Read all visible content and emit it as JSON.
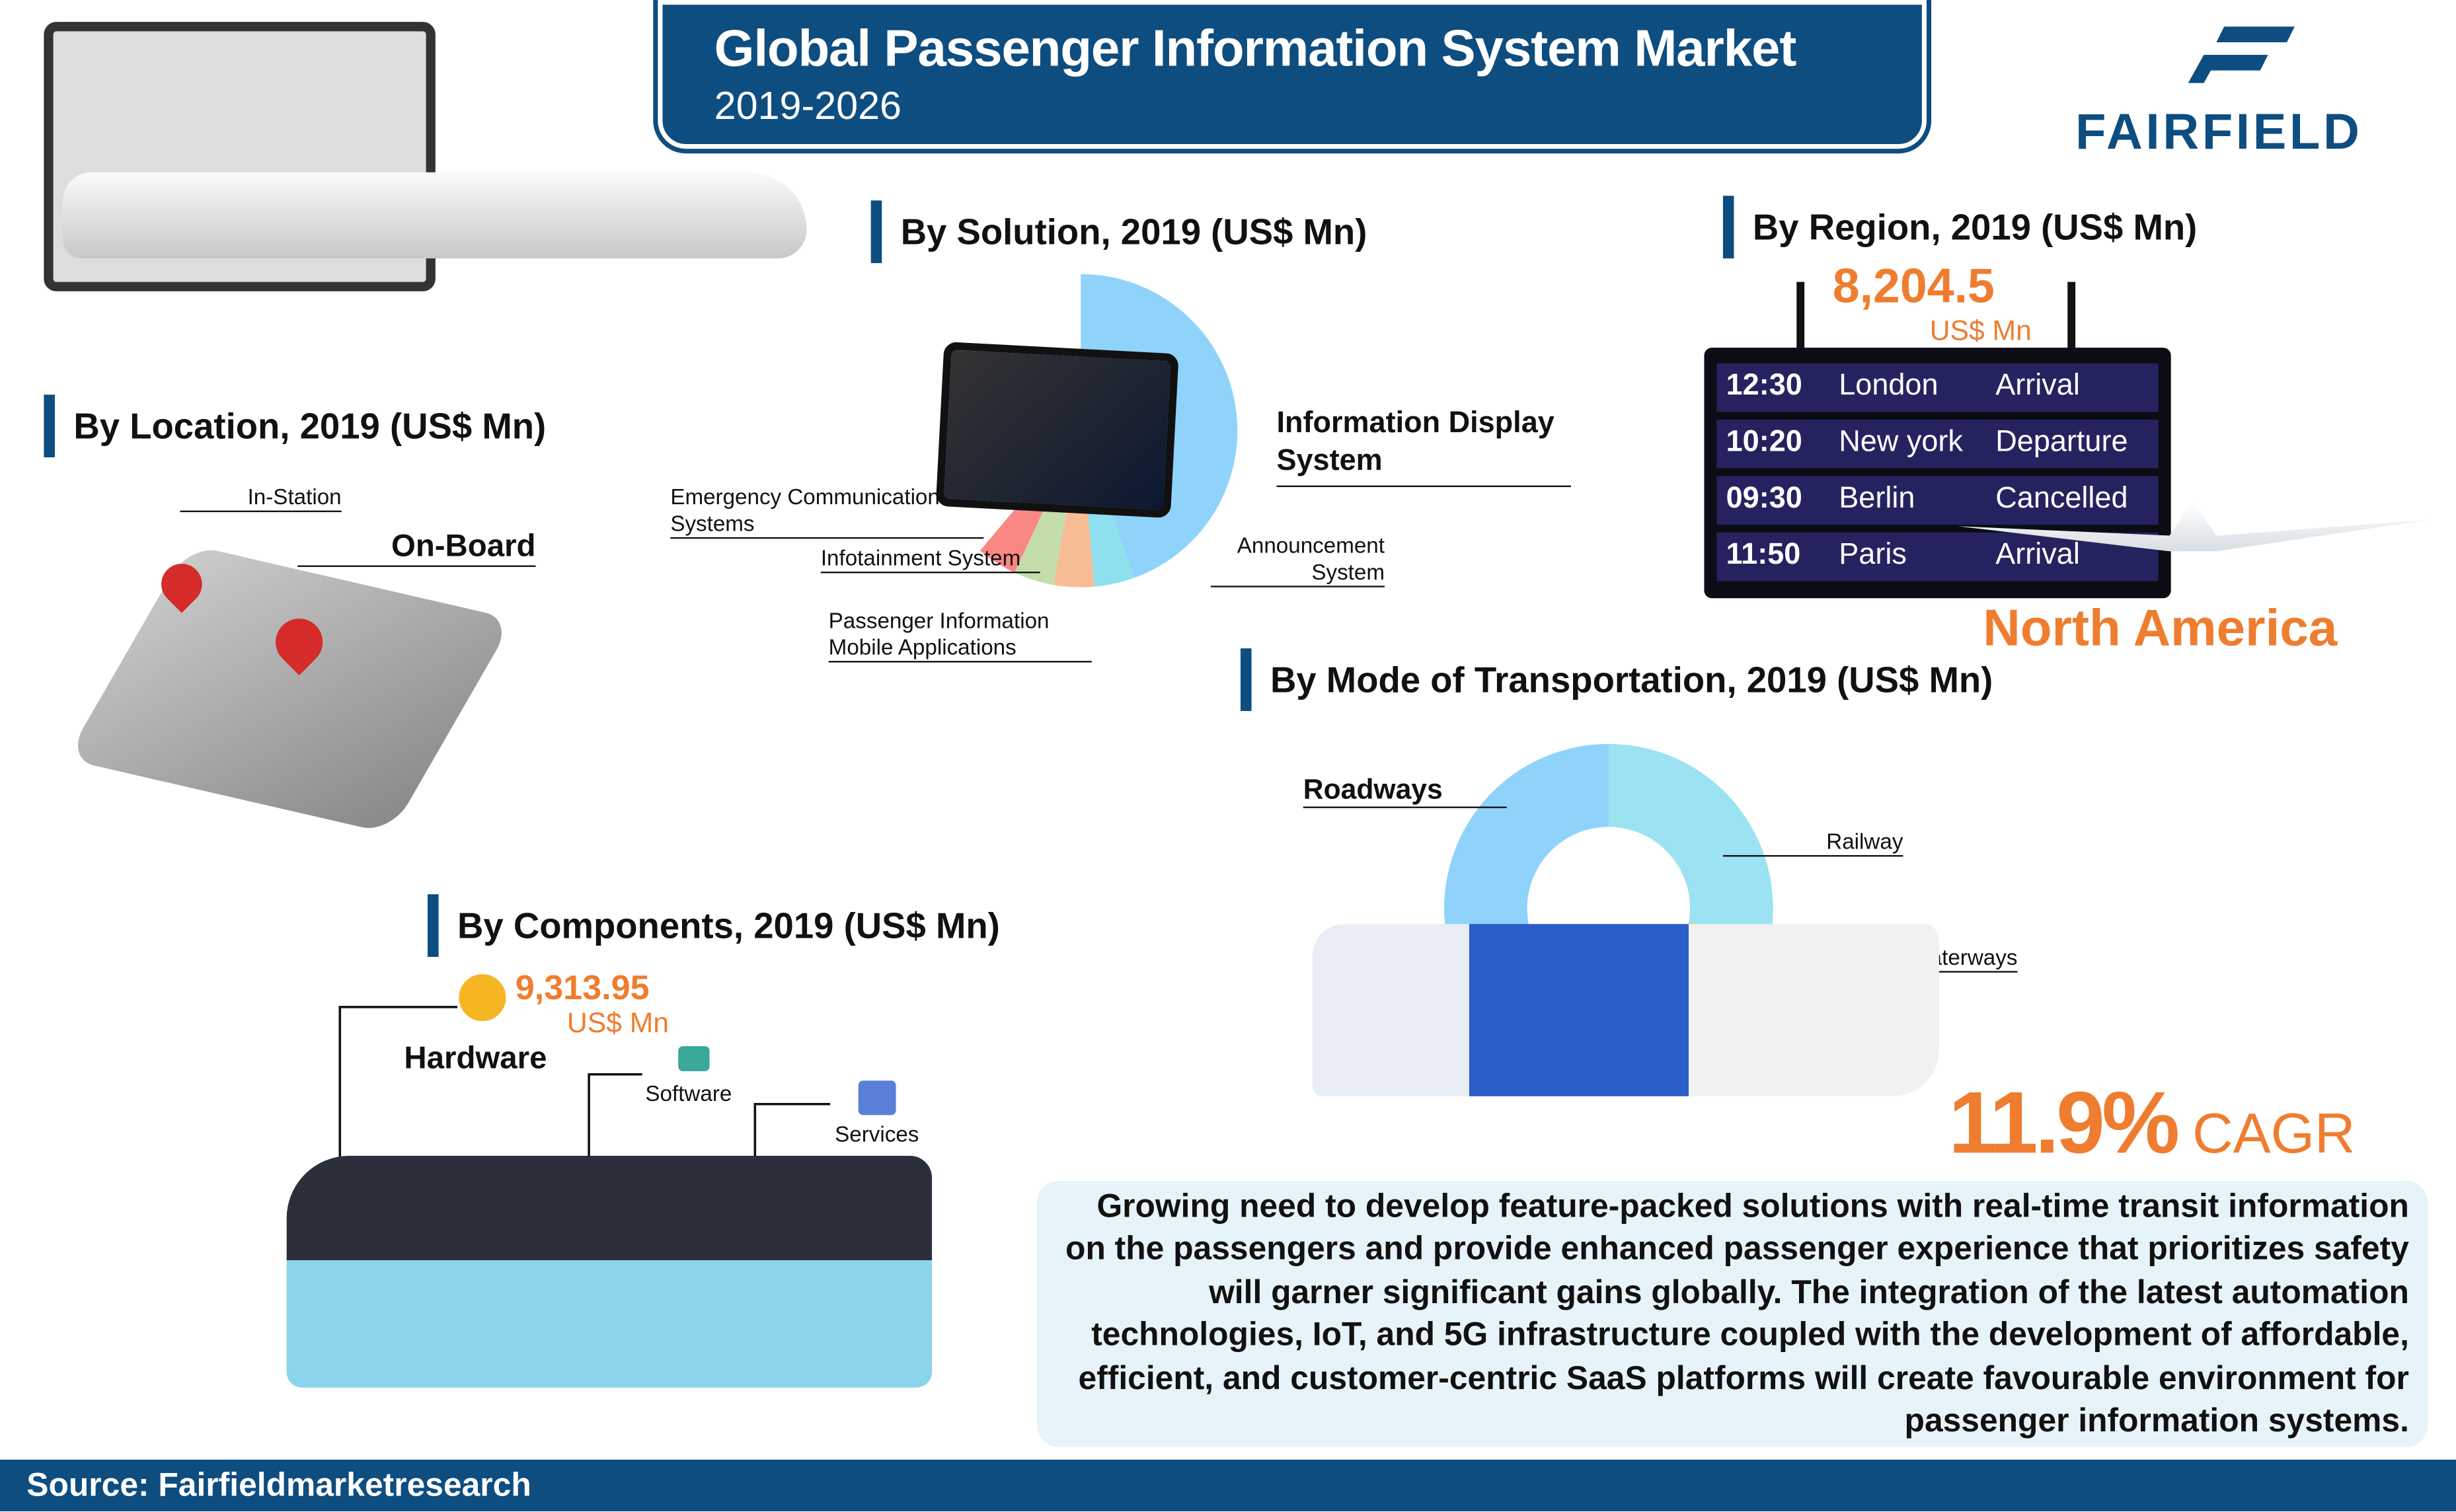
{
  "header": {
    "title": "Global Passenger Information System Market",
    "subtitle": "2019-2026"
  },
  "logo": {
    "text": "FAIRFIELD"
  },
  "location": {
    "title": "By Location, 2019 (US$ Mn)",
    "labels": [
      "In-Station",
      "On-Board"
    ]
  },
  "solution": {
    "title": "By Solution, 2019 (US$ Mn)",
    "labels": {
      "display": "Information Display System",
      "announcement": "Announcement System",
      "mobile": "Passenger Information Mobile Applications",
      "infotainment": "Infotainment System",
      "emergency": "Emergency Communication Systems"
    }
  },
  "region": {
    "title": "By Region, 2019 (US$ Mn)",
    "value": "8,204.5",
    "unit": "US$ Mn",
    "leader": "North America",
    "board": [
      [
        "12:30",
        "London",
        "Arrival"
      ],
      [
        "10:20",
        "New york",
        "Departure"
      ],
      [
        "09:30",
        "Berlin",
        "Cancelled"
      ],
      [
        "11:50",
        "Paris",
        "Arrival"
      ]
    ]
  },
  "transport": {
    "title": "By Mode of Transportation, 2019 (US$ Mn)",
    "labels": [
      "Roadways",
      "Railway",
      "Airways & Waterways"
    ]
  },
  "components": {
    "title": "By Components, 2019 (US$ Mn)",
    "value": "9,313.95",
    "unit": "US$ Mn",
    "labels": [
      "Hardware",
      "Software",
      "Services"
    ]
  },
  "cagr": {
    "value": "11.9%",
    "label": "CAGR"
  },
  "summary": "Growing need to develop feature-packed solutions with real-time transit information on the passengers and provide enhanced passenger experience that prioritizes safety will garner significant gains globally. The integration of the latest automation technologies, IoT, and 5G infrastructure coupled with the development of affordable, efficient, and customer-centric SaaS platforms will create favourable environment for passenger information systems.",
  "footer": "Source: Fairfieldmarketresearch",
  "colors": {
    "brand": "#0e4d80",
    "accent": "#ef7d2f"
  },
  "chart_data": [
    {
      "type": "pie",
      "categories": [
        "Information Display System",
        "Announcement System",
        "Passenger Information Mobile Applications",
        "Infotainment System",
        "Emergency Communication Systems"
      ],
      "values": [
        160,
        15,
        15,
        15,
        15
      ],
      "colors": [
        "#8fd3fb",
        "#8fe0ee",
        "#f6bd94",
        "#c3deaa",
        "#f98884"
      ]
    },
    {
      "type": "pie",
      "categories": [
        "Railway",
        "Airways & Waterways",
        "Roadways"
      ],
      "values": [
        100,
        50,
        210
      ],
      "colors": [
        "#9be2f2",
        "#f6bd94",
        "#8fd3fb"
      ]
    }
  ]
}
